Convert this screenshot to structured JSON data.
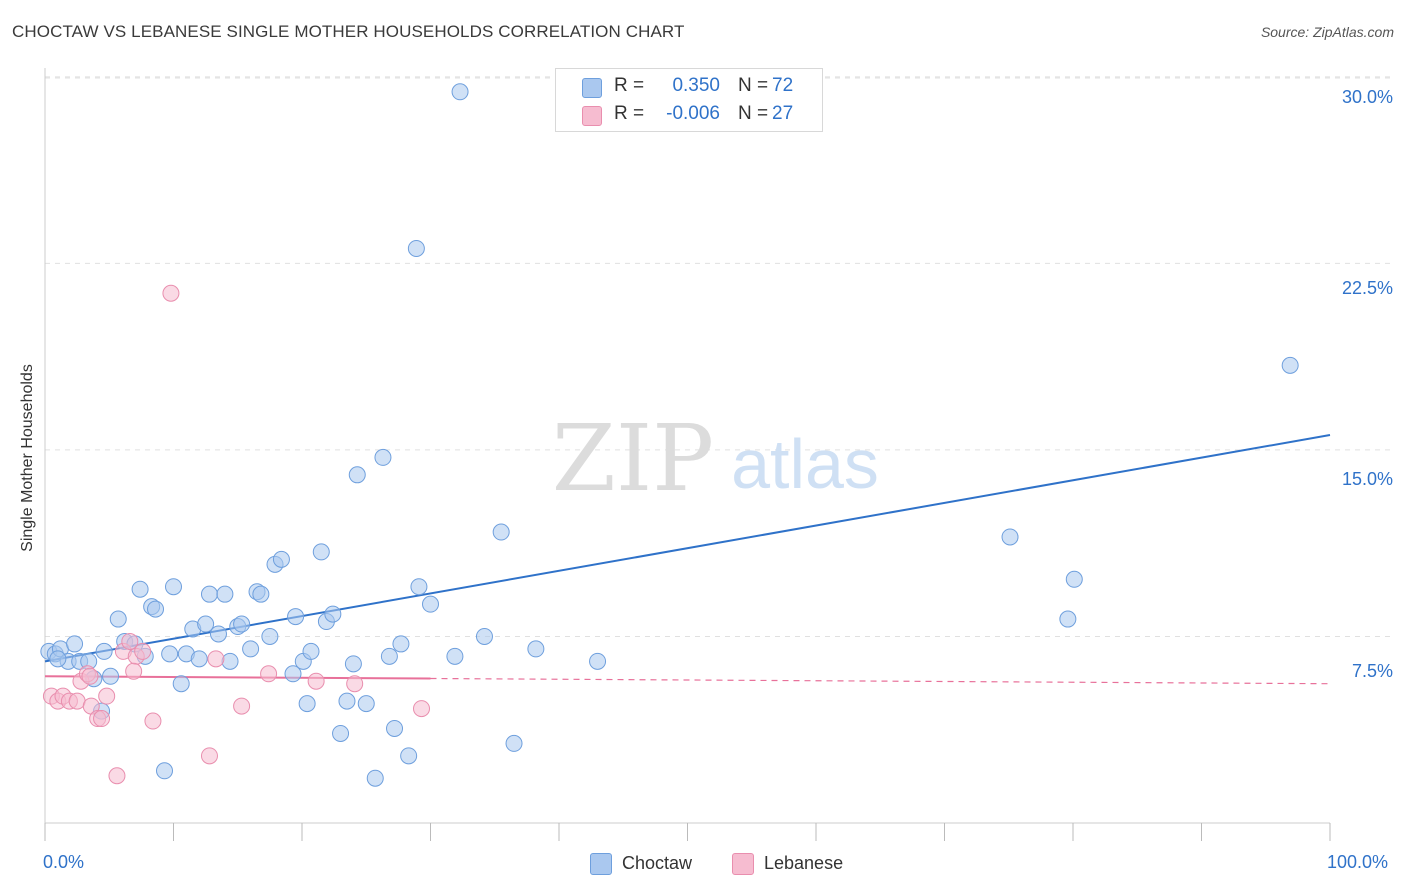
{
  "title": "CHOCTAW VS LEBANESE SINGLE MOTHER HOUSEHOLDS CORRELATION CHART",
  "source": "Source: ZipAtlas.com",
  "watermark": {
    "zip": "ZIP",
    "atlas": "atlas"
  },
  "legend": {
    "choctaw": {
      "r_label": "R =",
      "r_value": "0.350",
      "n_label": "N =",
      "n_value": "72"
    },
    "lebanese": {
      "r_label": "R =",
      "r_value": "-0.006",
      "n_label": "N =",
      "n_value": "27"
    }
  },
  "bottom_legend": {
    "choctaw": "Choctaw",
    "lebanese": "Lebanese"
  },
  "colors": {
    "choctaw_fill": "#aac8ef",
    "choctaw_stroke": "#6e9fdd",
    "choctaw_line": "#2f72c9",
    "lebanese_fill": "#f6bcd0",
    "lebanese_stroke": "#e98eae",
    "lebanese_line": "#e8719a",
    "grid": "#e0e0e0",
    "axis_text": "#2f72c9"
  },
  "chart_data": {
    "type": "scatter",
    "title": "CHOCTAW VS LEBANESE SINGLE MOTHER HOUSEHOLDS CORRELATION CHART",
    "xlabel": "",
    "ylabel": "Single Mother Households",
    "xlim": [
      0,
      100
    ],
    "ylim": [
      0,
      31
    ],
    "x_tick_labels": [
      "0.0%",
      "100.0%"
    ],
    "y_ticks": [
      7.5,
      15.0,
      22.5,
      30.0
    ],
    "y_tick_labels": [
      "7.5%",
      "15.0%",
      "22.5%",
      "30.0%"
    ],
    "grid": true,
    "series": [
      {
        "name": "Choctaw",
        "R": 0.35,
        "N": 72,
        "trend": {
          "x": [
            0,
            100
          ],
          "y": [
            6.5,
            15.6
          ],
          "dashed_from": null
        },
        "points": [
          [
            0.3,
            6.9
          ],
          [
            0.8,
            6.8
          ],
          [
            1.2,
            7.0
          ],
          [
            1.8,
            6.5
          ],
          [
            2.3,
            7.2
          ],
          [
            2.7,
            6.5
          ],
          [
            3.4,
            6.5
          ],
          [
            3.8,
            5.8
          ],
          [
            5.1,
            5.9
          ],
          [
            4.6,
            6.9
          ],
          [
            5.7,
            8.2
          ],
          [
            4.4,
            4.5
          ],
          [
            6.2,
            7.3
          ],
          [
            7.0,
            7.2
          ],
          [
            7.4,
            9.4
          ],
          [
            7.8,
            6.7
          ],
          [
            8.3,
            8.7
          ],
          [
            8.6,
            8.6
          ],
          [
            9.3,
            2.1
          ],
          [
            9.7,
            6.8
          ],
          [
            10.0,
            9.5
          ],
          [
            10.6,
            5.6
          ],
          [
            11.0,
            6.8
          ],
          [
            11.5,
            7.8
          ],
          [
            12.0,
            6.6
          ],
          [
            12.5,
            8.0
          ],
          [
            12.8,
            9.2
          ],
          [
            13.5,
            7.6
          ],
          [
            14.0,
            9.2
          ],
          [
            14.4,
            6.5
          ],
          [
            15.0,
            7.9
          ],
          [
            15.3,
            8.0
          ],
          [
            16.0,
            7.0
          ],
          [
            16.5,
            9.3
          ],
          [
            16.8,
            9.2
          ],
          [
            17.5,
            7.5
          ],
          [
            17.9,
            10.4
          ],
          [
            18.4,
            10.6
          ],
          [
            19.3,
            6.0
          ],
          [
            19.5,
            8.3
          ],
          [
            20.1,
            6.5
          ],
          [
            20.4,
            4.8
          ],
          [
            20.7,
            6.9
          ],
          [
            21.5,
            10.9
          ],
          [
            21.9,
            8.1
          ],
          [
            22.4,
            8.4
          ],
          [
            23.0,
            3.6
          ],
          [
            23.5,
            4.9
          ],
          [
            24.0,
            6.4
          ],
          [
            24.3,
            14.0
          ],
          [
            25.0,
            4.8
          ],
          [
            25.7,
            1.8
          ],
          [
            26.3,
            14.7
          ],
          [
            26.8,
            6.7
          ],
          [
            27.2,
            3.8
          ],
          [
            27.7,
            7.2
          ],
          [
            28.3,
            2.7
          ],
          [
            28.9,
            23.1
          ],
          [
            29.1,
            9.5
          ],
          [
            30.0,
            8.8
          ],
          [
            31.9,
            6.7
          ],
          [
            32.3,
            29.4
          ],
          [
            34.2,
            7.5
          ],
          [
            35.5,
            11.7
          ],
          [
            36.5,
            3.2
          ],
          [
            38.2,
            7.0
          ],
          [
            43.0,
            6.5
          ],
          [
            75.1,
            11.5
          ],
          [
            79.6,
            8.2
          ],
          [
            80.1,
            9.8
          ],
          [
            96.9,
            18.4
          ],
          [
            1.0,
            6.6
          ]
        ]
      },
      {
        "name": "Lebanese",
        "R": -0.006,
        "N": 27,
        "trend": {
          "x": [
            0,
            100
          ],
          "y": [
            5.9,
            5.6
          ],
          "dashed_from": 30
        },
        "points": [
          [
            0.5,
            5.1
          ],
          [
            1.0,
            4.9
          ],
          [
            1.4,
            5.1
          ],
          [
            1.9,
            4.9
          ],
          [
            2.5,
            4.9
          ],
          [
            2.8,
            5.7
          ],
          [
            3.3,
            6.0
          ],
          [
            3.6,
            4.7
          ],
          [
            4.1,
            4.2
          ],
          [
            4.4,
            4.2
          ],
          [
            4.8,
            5.1
          ],
          [
            5.6,
            1.9
          ],
          [
            6.1,
            6.9
          ],
          [
            6.6,
            7.3
          ],
          [
            7.1,
            6.7
          ],
          [
            7.6,
            6.9
          ],
          [
            8.4,
            4.1
          ],
          [
            9.8,
            21.3
          ],
          [
            12.8,
            2.7
          ],
          [
            13.3,
            6.6
          ],
          [
            15.3,
            4.7
          ],
          [
            17.4,
            6.0
          ],
          [
            21.1,
            5.7
          ],
          [
            24.1,
            5.6
          ],
          [
            29.3,
            4.6
          ],
          [
            3.5,
            5.9
          ],
          [
            6.9,
            6.1
          ]
        ]
      }
    ]
  }
}
